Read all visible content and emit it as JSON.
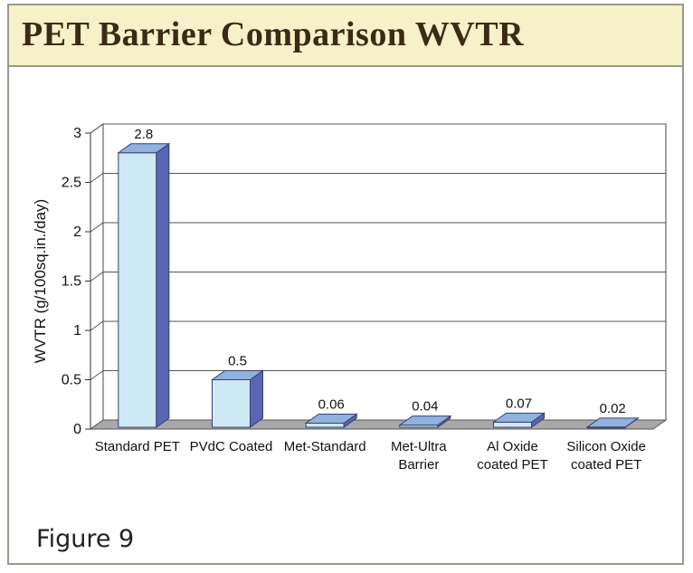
{
  "header": {
    "title": "PET Barrier Comparison WVTR"
  },
  "footer": {
    "figure_label": "Figure 9"
  },
  "colors": {
    "title_bg": "#f6f1c8",
    "title_text": "#3b2a16",
    "bar_front": "#cfe8f6",
    "bar_side": "#5866b4",
    "bar_top": "#8fb2df",
    "floor": "#a8a8a8"
  },
  "chart_data": {
    "type": "bar",
    "title": "PET Barrier Comparison WVTR",
    "xlabel": "",
    "ylabel": "WVTR (g/100sq.in./day)",
    "categories": [
      [
        "Standard PET"
      ],
      [
        "PVdC Coated"
      ],
      [
        "Met-Standard"
      ],
      [
        "Met-Ultra",
        "Barrier"
      ],
      [
        "Al Oxide",
        "coated PET"
      ],
      [
        "Silicon Oxide",
        "coated PET"
      ]
    ],
    "values": [
      2.8,
      0.5,
      0.06,
      0.04,
      0.07,
      0.02
    ],
    "value_labels": [
      "2.8",
      "0.5",
      "0.06",
      "0.04",
      "0.07",
      "0.02"
    ],
    "ylim": [
      0,
      3
    ],
    "yticks": [
      0,
      0.5,
      1,
      1.5,
      2,
      2.5,
      3
    ],
    "ytick_labels": [
      "0",
      "0.5",
      "1",
      "1.5",
      "2",
      "2.5",
      "3"
    ],
    "grid": true,
    "legend": "none",
    "style": "3d"
  }
}
